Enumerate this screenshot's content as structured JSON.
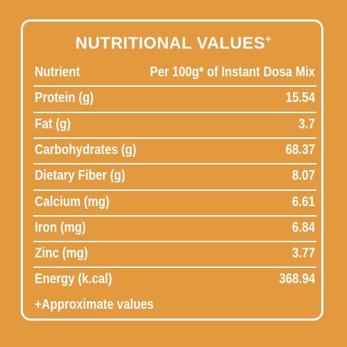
{
  "title": "NUTRITIONAL VALUES",
  "title_mark": "+",
  "table": {
    "header": [
      "Nutrient",
      "Per 100g* of Instant Dosa Mix"
    ],
    "rows": [
      [
        "Protein (g)",
        15.54
      ],
      [
        "Fat (g)",
        3.7
      ],
      [
        "Carbohydrates (g)",
        68.37
      ],
      [
        "Dietary Fiber (g)",
        8.07
      ],
      [
        "Calcium (mg)",
        6.61
      ],
      [
        "Iron (mg)",
        6.84
      ],
      [
        "Zinc (mg)",
        3.77
      ],
      [
        "Energy (k.cal)",
        368.94
      ]
    ]
  },
  "footnote": "+Approximate values"
}
